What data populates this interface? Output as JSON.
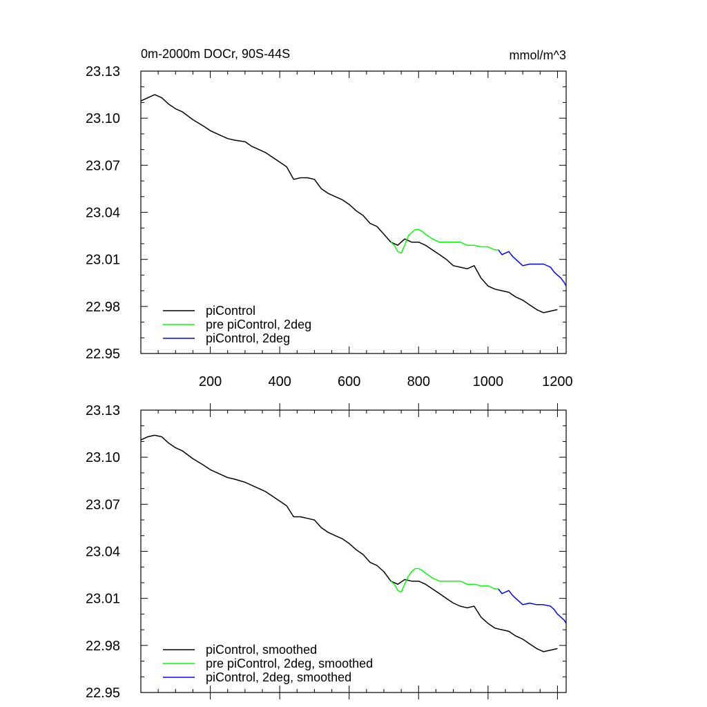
{
  "chart_data": [
    {
      "type": "line",
      "title": "0m-2000m DOCr, 90S-44S",
      "units": "mmol/m^3",
      "xlim": [
        0,
        1225
      ],
      "ylim": [
        22.95,
        23.13
      ],
      "yticks": [
        "23.13",
        "23.10",
        "23.07",
        "23.04",
        "23.01",
        "22.98",
        "22.95"
      ],
      "xticks": [
        "200",
        "400",
        "600",
        "800",
        "1000",
        "1200"
      ],
      "legend_position": "bottom-left",
      "series": [
        {
          "name": "piControl",
          "color": "#000000",
          "x": [
            0,
            20,
            40,
            60,
            80,
            100,
            120,
            150,
            180,
            200,
            230,
            250,
            270,
            300,
            320,
            340,
            360,
            380,
            400,
            420,
            440,
            460,
            480,
            500,
            520,
            540,
            560,
            580,
            600,
            620,
            640,
            660,
            680,
            700,
            720,
            740,
            760,
            780,
            800,
            820,
            840,
            860,
            880,
            900,
            920,
            940,
            960,
            980,
            1000,
            1020,
            1040,
            1060,
            1080,
            1100,
            1120,
            1140,
            1160,
            1180,
            1200
          ],
          "y": [
            23.111,
            23.113,
            23.115,
            23.113,
            23.109,
            23.106,
            23.104,
            23.099,
            23.095,
            23.092,
            23.089,
            23.087,
            23.086,
            23.085,
            23.082,
            23.08,
            23.078,
            23.075,
            23.072,
            23.069,
            23.061,
            23.062,
            23.062,
            23.061,
            23.055,
            23.052,
            23.05,
            23.048,
            23.045,
            23.041,
            23.038,
            23.033,
            23.031,
            23.026,
            23.021,
            23.019,
            23.023,
            23.021,
            23.021,
            23.019,
            23.016,
            23.013,
            23.01,
            23.006,
            23.005,
            23.004,
            23.006,
            22.998,
            22.993,
            22.991,
            22.99,
            22.989,
            22.986,
            22.984,
            22.981,
            22.978,
            22.976,
            22.977,
            22.978
          ]
        },
        {
          "name": "pre piControl, 2deg",
          "color": "#00ff00",
          "x": [
            720,
            730,
            740,
            750,
            760,
            770,
            780,
            790,
            800,
            810,
            820,
            840,
            860,
            880,
            900,
            920,
            940,
            960,
            980,
            1000,
            1020,
            1030
          ],
          "y": [
            23.021,
            23.019,
            23.015,
            23.014,
            23.019,
            23.025,
            23.027,
            23.029,
            23.029,
            23.028,
            23.026,
            23.023,
            23.021,
            23.021,
            23.021,
            23.021,
            23.019,
            23.019,
            23.018,
            23.018,
            23.016,
            23.016
          ]
        },
        {
          "name": "piControl, 2deg",
          "color": "#0000ff",
          "x": [
            1030,
            1040,
            1050,
            1060,
            1070,
            1080,
            1090,
            1100,
            1120,
            1140,
            1160,
            1180,
            1190,
            1200,
            1210,
            1220,
            1225
          ],
          "y": [
            23.016,
            23.013,
            23.014,
            23.015,
            23.012,
            23.01,
            23.008,
            23.006,
            23.007,
            23.007,
            23.007,
            23.005,
            23.002,
            23.0,
            22.998,
            22.995,
            22.993
          ]
        }
      ]
    },
    {
      "type": "line",
      "xlim": [
        0,
        1225
      ],
      "ylim": [
        22.95,
        23.13
      ],
      "yticks": [
        "23.13",
        "23.10",
        "23.07",
        "23.04",
        "23.01",
        "22.98",
        "22.95"
      ],
      "legend_position": "bottom-left",
      "series": [
        {
          "name": "piControl, smoothed",
          "color": "#000000",
          "x": [
            0,
            20,
            40,
            60,
            80,
            100,
            120,
            150,
            180,
            200,
            230,
            250,
            270,
            300,
            320,
            340,
            360,
            380,
            400,
            420,
            440,
            460,
            480,
            500,
            520,
            540,
            560,
            580,
            600,
            620,
            640,
            660,
            680,
            700,
            720,
            740,
            760,
            780,
            800,
            820,
            840,
            860,
            880,
            900,
            920,
            940,
            960,
            980,
            1000,
            1020,
            1040,
            1060,
            1080,
            1100,
            1120,
            1140,
            1160,
            1180,
            1200
          ],
          "y": [
            23.111,
            23.113,
            23.114,
            23.113,
            23.109,
            23.106,
            23.104,
            23.099,
            23.095,
            23.092,
            23.089,
            23.087,
            23.086,
            23.084,
            23.082,
            23.08,
            23.078,
            23.075,
            23.072,
            23.069,
            23.062,
            23.062,
            23.061,
            23.06,
            23.055,
            23.052,
            23.05,
            23.048,
            23.045,
            23.041,
            23.038,
            23.033,
            23.031,
            23.027,
            23.021,
            23.019,
            23.022,
            23.021,
            23.021,
            23.019,
            23.016,
            23.013,
            23.01,
            23.007,
            23.005,
            23.004,
            23.005,
            22.998,
            22.994,
            22.991,
            22.99,
            22.989,
            22.986,
            22.984,
            22.981,
            22.978,
            22.976,
            22.977,
            22.978
          ]
        },
        {
          "name": "pre piControl, 2deg, smoothed",
          "color": "#00ff00",
          "x": [
            720,
            730,
            740,
            750,
            760,
            770,
            780,
            790,
            800,
            810,
            820,
            840,
            860,
            880,
            900,
            920,
            940,
            960,
            980,
            1000,
            1020,
            1030
          ],
          "y": [
            23.021,
            23.019,
            23.015,
            23.014,
            23.019,
            23.024,
            23.027,
            23.029,
            23.029,
            23.028,
            23.026,
            23.023,
            23.021,
            23.021,
            23.021,
            23.021,
            23.019,
            23.019,
            23.018,
            23.018,
            23.016,
            23.016
          ]
        },
        {
          "name": "piControl, 2deg, smoothed",
          "color": "#0000ff",
          "x": [
            1030,
            1040,
            1050,
            1060,
            1070,
            1080,
            1090,
            1100,
            1120,
            1140,
            1160,
            1180,
            1190,
            1200,
            1210,
            1220,
            1225
          ],
          "y": [
            23.016,
            23.013,
            23.014,
            23.015,
            23.012,
            23.01,
            23.008,
            23.006,
            23.007,
            23.006,
            23.006,
            23.005,
            23.003,
            23.0,
            22.998,
            22.996,
            22.994
          ]
        }
      ]
    }
  ]
}
